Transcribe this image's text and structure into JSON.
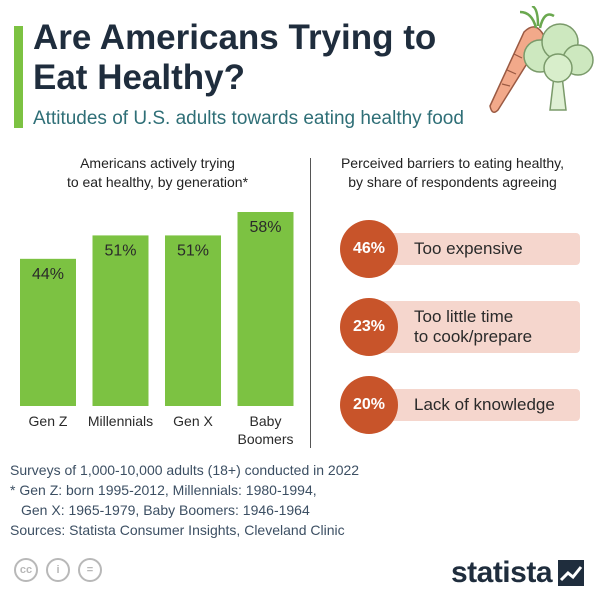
{
  "header": {
    "title": "Are Americans Trying to Eat Healthy?",
    "subtitle": "Attitudes of U.S. adults towards eating healthy food"
  },
  "colors": {
    "accent": "#7cc242",
    "bar": "#7cc242",
    "barrier_circle": "#c8542a",
    "barrier_bg": "#f5d6cd"
  },
  "chart_data": [
    {
      "type": "bar",
      "title": "Americans actively trying to eat healthy, by generation*",
      "categories": [
        "Gen Z",
        "Millennials",
        "Gen X",
        "Baby Boomers"
      ],
      "category_lines": [
        [
          "Gen Z"
        ],
        [
          "Millennials"
        ],
        [
          "Gen X"
        ],
        [
          "Baby",
          "Boomers"
        ]
      ],
      "values": [
        44,
        51,
        51,
        58
      ],
      "value_labels": [
        "44%",
        "51%",
        "51%",
        "58%"
      ],
      "unit": "%",
      "ylim": [
        0,
        58
      ],
      "grid": false
    },
    {
      "type": "table",
      "title": "Perceived barriers to eating healthy, by share of respondents agreeing",
      "rows": [
        {
          "value": 46,
          "value_label": "46%",
          "label": "Too expensive"
        },
        {
          "value": 23,
          "value_label": "23%",
          "label": "Too little time to cook/prepare"
        },
        {
          "value": 20,
          "value_label": "20%",
          "label": "Lack of knowledge"
        }
      ]
    }
  ],
  "panels": {
    "left_title_1": "Americans actively trying",
    "left_title_2": "to eat healthy, by generation*",
    "right_title_1": "Perceived barriers to eating healthy,",
    "right_title_2": "by share of respondents agreeing"
  },
  "barrier_labels": {
    "b0_line1": "Too expensive",
    "b1_line1": "Too little time",
    "b1_line2": "to cook/prepare",
    "b2_line1": "Lack of knowledge"
  },
  "footnotes": {
    "line1": "Surveys of 1,000-10,000 adults (18+) conducted in 2022",
    "line2": "* Gen Z: born 1995-2012, Millennials: 1980-1994,",
    "line3": "Gen X: 1965-1979, Baby Boomers: 1946-1964",
    "line4": "Sources: Statista Consumer Insights, Cleveland Clinic"
  },
  "license": {
    "cc": "cc",
    "by": "i",
    "nd": "="
  },
  "brand": {
    "logo_text": "statista"
  },
  "icons": [
    "carrot-icon",
    "broccoli-icon",
    "cc-icon",
    "by-icon",
    "nd-icon",
    "statista-logo-icon"
  ]
}
